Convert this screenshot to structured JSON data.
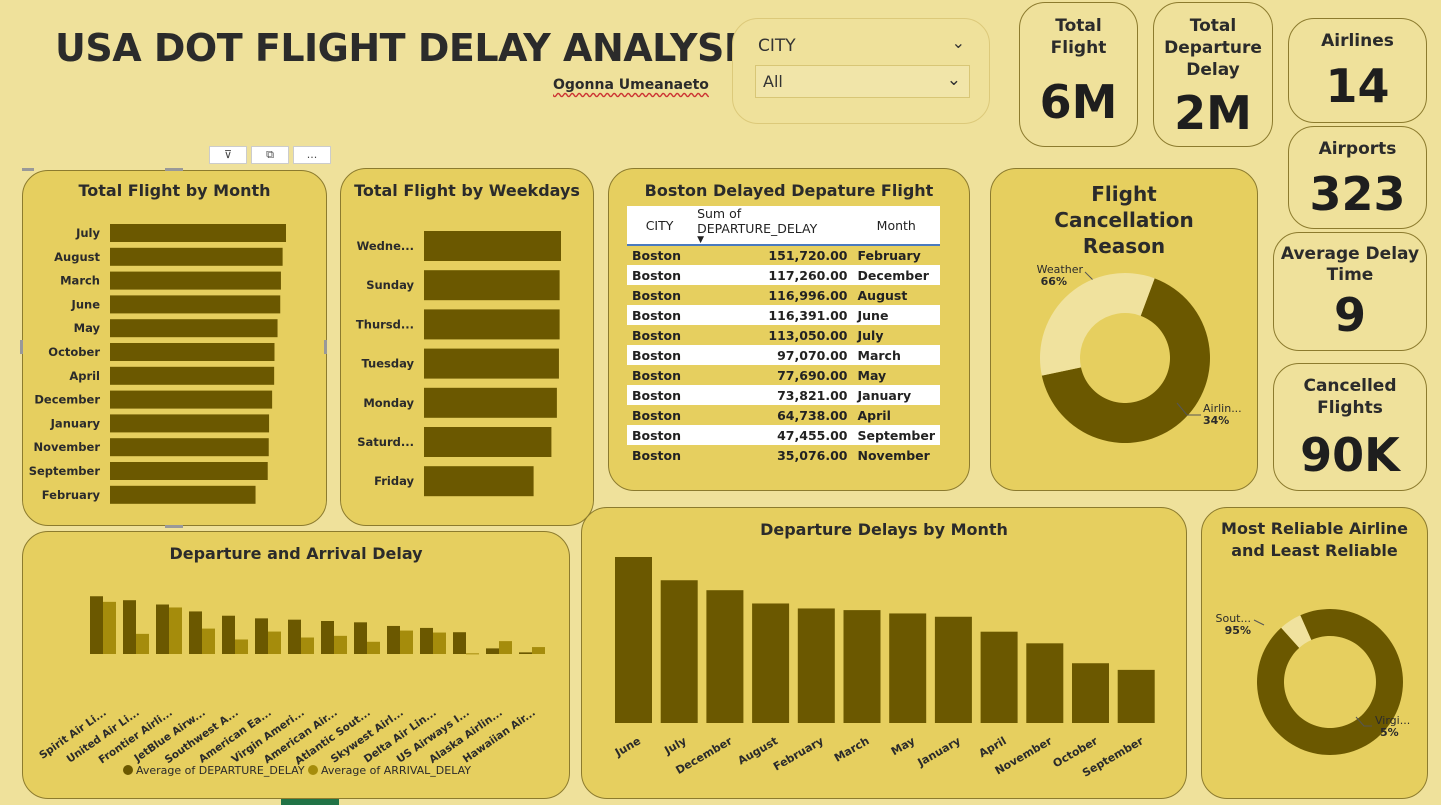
{
  "header": {
    "title": "USA DOT FLIGHT DELAY ANALYSIS",
    "author": "Ogonna Umeanaeto"
  },
  "slicer": {
    "label": "CITY",
    "value": "All"
  },
  "kpis": {
    "total_flight": {
      "label_l1": "Total",
      "label_l2": "Flight",
      "value": "6M"
    },
    "total_departure_delay": {
      "label_l1": "Total",
      "label_l2": "Departure",
      "label_l3": "Delay",
      "value": "2M"
    },
    "airlines": {
      "label": "Airlines",
      "value": "14"
    },
    "airports": {
      "label": "Airports",
      "value": "323"
    },
    "avg_delay": {
      "label_l1": "Average Delay",
      "label_l2": "Time",
      "value": "9"
    },
    "cancelled": {
      "label_l1": "Cancelled",
      "label_l2": "Flights",
      "value": "90K"
    }
  },
  "visual_toolbar": {
    "filter_icon": "filter-icon",
    "focus_icon": "focus-mode-icon",
    "more": "..."
  },
  "colors": {
    "bar": "#6b5800",
    "bar_secondary": "#a58c0c",
    "card": "#e6cf5f",
    "background": "#efe19b",
    "donut_light": "#f0e29e"
  },
  "table": {
    "title": "Boston Delayed Depature Flight",
    "columns": [
      "CITY",
      "Sum of DEPARTURE_DELAY",
      "Month"
    ],
    "rows": [
      [
        "Boston",
        "151,720.00",
        "February"
      ],
      [
        "Boston",
        "117,260.00",
        "December"
      ],
      [
        "Boston",
        "116,996.00",
        "August"
      ],
      [
        "Boston",
        "116,391.00",
        "June"
      ],
      [
        "Boston",
        "113,050.00",
        "July"
      ],
      [
        "Boston",
        "97,070.00",
        "March"
      ],
      [
        "Boston",
        "77,690.00",
        "May"
      ],
      [
        "Boston",
        "73,821.00",
        "January"
      ],
      [
        "Boston",
        "64,738.00",
        "April"
      ],
      [
        "Boston",
        "47,455.00",
        "September"
      ],
      [
        "Boston",
        "35,076.00",
        "November"
      ]
    ]
  },
  "chart_data": [
    {
      "id": "by_month",
      "type": "bar",
      "orientation": "horizontal",
      "title": "Total Flight by Month",
      "categories": [
        "July",
        "August",
        "March",
        "June",
        "May",
        "October",
        "April",
        "December",
        "January",
        "November",
        "September",
        "February"
      ],
      "values": [
        520,
        510,
        505,
        503,
        495,
        486,
        485,
        479,
        470,
        469,
        466,
        430
      ],
      "xlim": [
        0,
        520
      ]
    },
    {
      "id": "by_weekday",
      "type": "bar",
      "orientation": "horizontal",
      "title": "Total Flight by Weekdays",
      "categories": [
        "Wedne...",
        "Sunday",
        "Thursd...",
        "Tuesday",
        "Monday",
        "Saturd...",
        "Friday"
      ],
      "values": [
        100,
        99,
        99,
        98.5,
        97,
        93,
        80
      ],
      "xlim": [
        0,
        100
      ]
    },
    {
      "id": "cancellation",
      "type": "pie",
      "title": "Flight Cancellation Reason",
      "slices": [
        {
          "label": "Weather",
          "pct_label": "66%",
          "value": 66
        },
        {
          "label": "Airlin...",
          "pct_label": "34%",
          "value": 34
        }
      ]
    },
    {
      "id": "dep_arr",
      "type": "bar",
      "title": "Departure and Arrival Delay",
      "categories": [
        "Spirit Air Li...",
        "United Air Li...",
        "Frontier Airli...",
        "JetBlue Airw...",
        "Southwest A...",
        "American Ea...",
        "Virgin Ameri...",
        "American Air...",
        "Atlantic Sout...",
        "Skywest Airl...",
        "Delta Air Lin...",
        "US Airways I...",
        "Alaska Airlin...",
        "Hawaiian Air..."
      ],
      "series": [
        {
          "name": "Average of DEPARTURE_DELAY",
          "values": [
            17.5,
            16.3,
            15.0,
            12.9,
            11.6,
            10.8,
            10.4,
            10.0,
            9.6,
            8.5,
            7.9,
            6.6,
            1.7,
            0.5
          ]
        },
        {
          "name": "Average of ARRIVAL_DELAY",
          "values": [
            15.8,
            6.1,
            14.1,
            7.7,
            4.4,
            6.8,
            5.0,
            5.5,
            3.7,
            7.1,
            6.5,
            0.2,
            3.9,
            2.1
          ]
        }
      ],
      "ylim": [
        -1,
        18
      ]
    },
    {
      "id": "dep_by_month",
      "type": "bar",
      "title": "Departure Delays by Month",
      "categories": [
        "June",
        "July",
        "December",
        "August",
        "February",
        "March",
        "May",
        "January",
        "April",
        "November",
        "October",
        "September"
      ],
      "values": [
        100,
        86,
        80,
        72,
        69,
        68,
        66,
        64,
        55,
        48,
        36,
        32
      ],
      "ylim": [
        0,
        100
      ]
    },
    {
      "id": "reliable",
      "type": "pie",
      "title": "Most Reliable Airline and Least Reliable",
      "slices": [
        {
          "label": "Sout...",
          "pct_label": "95%",
          "value": 95
        },
        {
          "label": "Virgi...",
          "pct_label": "5%",
          "value": 5
        }
      ]
    }
  ]
}
